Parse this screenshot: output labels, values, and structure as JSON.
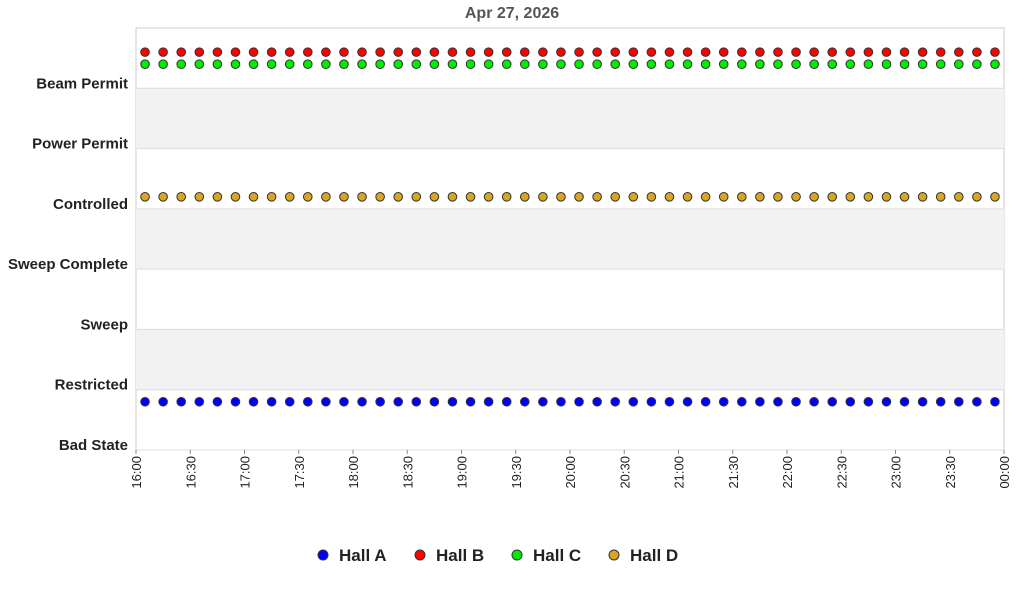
{
  "chart_data": {
    "type": "scatter",
    "title": "Apr 27, 2026",
    "x": [
      "16:05",
      "16:15",
      "16:25",
      "16:35",
      "16:45",
      "16:55",
      "17:05",
      "17:15",
      "17:25",
      "17:35",
      "17:45",
      "17:55",
      "18:05",
      "18:15",
      "18:25",
      "18:35",
      "18:45",
      "18:55",
      "19:05",
      "19:15",
      "19:25",
      "19:35",
      "19:45",
      "19:55",
      "20:05",
      "20:15",
      "20:25",
      "20:35",
      "20:45",
      "20:55",
      "21:05",
      "21:15",
      "21:25",
      "21:35",
      "21:45",
      "21:55",
      "22:05",
      "22:15",
      "22:25",
      "22:35",
      "22:45",
      "22:55",
      "23:05",
      "23:15",
      "23:25",
      "23:35",
      "23:45",
      "23:55"
    ],
    "series": [
      {
        "name": "Hall A",
        "color": "#0000ff",
        "values": [
          0.8,
          0.8,
          0.8,
          0.8,
          0.8,
          0.8,
          0.8,
          0.8,
          0.8,
          0.8,
          0.8,
          0.8,
          0.8,
          0.8,
          0.8,
          0.8,
          0.8,
          0.8,
          0.8,
          0.8,
          0.8,
          0.8,
          0.8,
          0.8,
          0.8,
          0.8,
          0.8,
          0.8,
          0.8,
          0.8,
          0.8,
          0.8,
          0.8,
          0.8,
          0.8,
          0.8,
          0.8,
          0.8,
          0.8,
          0.8,
          0.8,
          0.8,
          0.8,
          0.8,
          0.8,
          0.8,
          0.8,
          0.8
        ]
      },
      {
        "name": "Hall B",
        "color": "#ff0000",
        "values": [
          6.6,
          6.6,
          6.6,
          6.6,
          6.6,
          6.6,
          6.6,
          6.6,
          6.6,
          6.6,
          6.6,
          6.6,
          6.6,
          6.6,
          6.6,
          6.6,
          6.6,
          6.6,
          6.6,
          6.6,
          6.6,
          6.6,
          6.6,
          6.6,
          6.6,
          6.6,
          6.6,
          6.6,
          6.6,
          6.6,
          6.6,
          6.6,
          6.6,
          6.6,
          6.6,
          6.6,
          6.6,
          6.6,
          6.6,
          6.6,
          6.6,
          6.6,
          6.6,
          6.6,
          6.6,
          6.6,
          6.6,
          6.6
        ]
      },
      {
        "name": "Hall C",
        "color": "#00ee00",
        "values": [
          6.4,
          6.4,
          6.4,
          6.4,
          6.4,
          6.4,
          6.4,
          6.4,
          6.4,
          6.4,
          6.4,
          6.4,
          6.4,
          6.4,
          6.4,
          6.4,
          6.4,
          6.4,
          6.4,
          6.4,
          6.4,
          6.4,
          6.4,
          6.4,
          6.4,
          6.4,
          6.4,
          6.4,
          6.4,
          6.4,
          6.4,
          6.4,
          6.4,
          6.4,
          6.4,
          6.4,
          6.4,
          6.4,
          6.4,
          6.4,
          6.4,
          6.4,
          6.4,
          6.4,
          6.4,
          6.4,
          6.4,
          6.4
        ]
      },
      {
        "name": "Hall D",
        "color": "#daa520",
        "values": [
          4.2,
          4.2,
          4.2,
          4.2,
          4.2,
          4.2,
          4.2,
          4.2,
          4.2,
          4.2,
          4.2,
          4.2,
          4.2,
          4.2,
          4.2,
          4.2,
          4.2,
          4.2,
          4.2,
          4.2,
          4.2,
          4.2,
          4.2,
          4.2,
          4.2,
          4.2,
          4.2,
          4.2,
          4.2,
          4.2,
          4.2,
          4.2,
          4.2,
          4.2,
          4.2,
          4.2,
          4.2,
          4.2,
          4.2,
          4.2,
          4.2,
          4.2,
          4.2,
          4.2,
          4.2,
          4.2,
          4.2,
          4.2
        ]
      }
    ],
    "xlim": [
      "16:00",
      "00:00"
    ],
    "xticks": [
      "16:00",
      "16:30",
      "17:00",
      "17:30",
      "18:00",
      "18:30",
      "19:00",
      "19:30",
      "20:00",
      "20:30",
      "21:00",
      "21:30",
      "22:00",
      "22:30",
      "23:00",
      "23:30",
      "00:00"
    ],
    "ylim": [
      0,
      7
    ],
    "yticks": [
      {
        "value": 0,
        "label": "Bad State"
      },
      {
        "value": 1,
        "label": "Restricted"
      },
      {
        "value": 2,
        "label": "Sweep"
      },
      {
        "value": 3,
        "label": "Sweep Complete"
      },
      {
        "value": 4,
        "label": "Controlled"
      },
      {
        "value": 5,
        "label": "Power Permit"
      },
      {
        "value": 6,
        "label": "Beam Permit"
      }
    ],
    "grid": true,
    "legend": "bottom"
  }
}
